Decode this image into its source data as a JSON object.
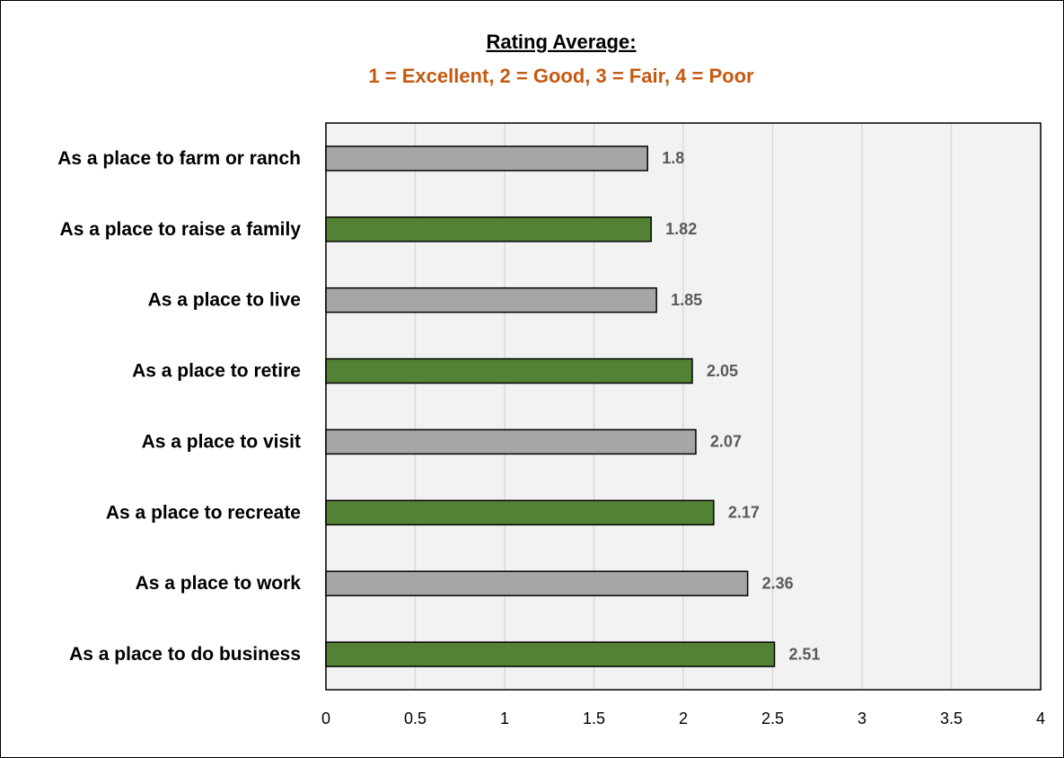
{
  "chart_data": {
    "type": "bar",
    "orientation": "horizontal",
    "title": "Rating Average:",
    "subtitle": "1 = Excellent, 2 = Good, 3 = Fair, 4 = Poor",
    "categories": [
      "As a place to farm or ranch",
      "As a place to raise a family",
      "As a place to live",
      "As a place to retire",
      "As a place to visit",
      "As a place to recreate",
      "As a place to work",
      "As a place to do business"
    ],
    "values": [
      1.8,
      1.82,
      1.85,
      2.05,
      2.07,
      2.17,
      2.36,
      2.51
    ],
    "colors": [
      "#a6a6a6",
      "#548235",
      "#a6a6a6",
      "#548235",
      "#a6a6a6",
      "#548235",
      "#a6a6a6",
      "#548235"
    ],
    "xlim": [
      0,
      4
    ],
    "xticks": [
      0,
      0.5,
      1,
      1.5,
      2,
      2.5,
      3,
      3.5,
      4
    ],
    "grid": true
  }
}
